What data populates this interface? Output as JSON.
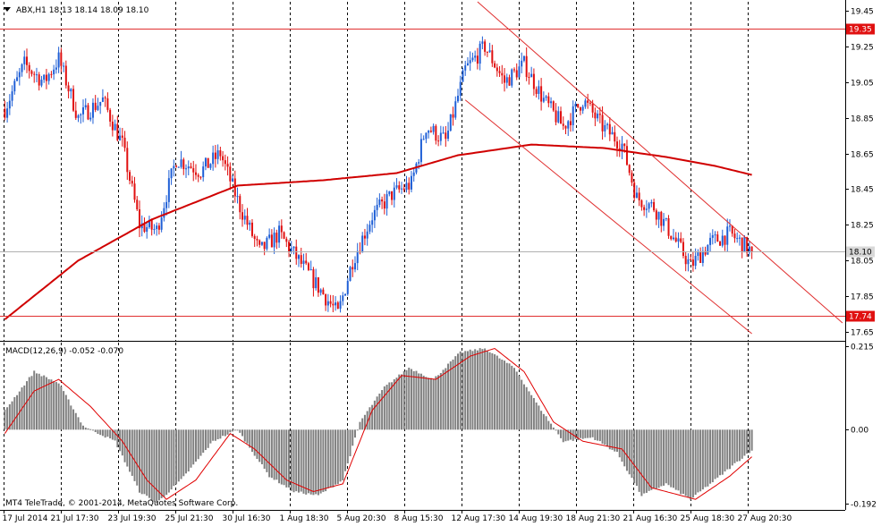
{
  "chart_data": [
    {
      "type": "candlestick",
      "header": "ABX,H1  18.13 18.14 18.09 18.10",
      "symbol": "ABX",
      "timeframe": "H1",
      "ohlc_last": {
        "open": 18.13,
        "high": 18.14,
        "low": 18.09,
        "close": 18.1
      },
      "ylim": [
        17.6,
        19.5
      ],
      "y_ticks": [
        "19.45",
        "19.25",
        "19.05",
        "18.85",
        "18.65",
        "18.45",
        "18.25",
        "18.05",
        "17.85",
        "17.65"
      ],
      "x_ticks": [
        "17 Jul 2014",
        "21 Jul 17:30",
        "23 Jul 19:30",
        "25 Jul 21:30",
        "30 Jul 16:30",
        "1 Aug 18:30",
        "5 Aug 20:30",
        "8 Aug 15:30",
        "12 Aug 17:30",
        "14 Aug 19:30",
        "18 Aug 21:30",
        "21 Aug 16:30",
        "25 Aug 18:30",
        "27 Aug 20:30"
      ],
      "current_price_label": "18.10",
      "horizontal_levels": [
        {
          "value": 19.35,
          "label": "19.35"
        },
        {
          "value": 17.74,
          "label": "17.74"
        }
      ],
      "ma_anchor_points": [
        {
          "bar": 0,
          "value": 17.72
        },
        {
          "bar": 30,
          "value": 18.05
        },
        {
          "bar": 60,
          "value": 18.28
        },
        {
          "bar": 95,
          "value": 18.47
        },
        {
          "bar": 130,
          "value": 18.5
        },
        {
          "bar": 160,
          "value": 18.54
        },
        {
          "bar": 185,
          "value": 18.64
        },
        {
          "bar": 215,
          "value": 18.7
        },
        {
          "bar": 245,
          "value": 18.68
        },
        {
          "bar": 270,
          "value": 18.63
        },
        {
          "bar": 290,
          "value": 18.58
        },
        {
          "bar": 305,
          "value": 18.53
        }
      ],
      "channel_upper": {
        "from": {
          "bar": 193,
          "value": 19.5
        },
        "to": {
          "bar": 342,
          "value": 17.7
        }
      },
      "channel_lower": {
        "from": {
          "bar": 188,
          "value": 18.95
        },
        "to": {
          "bar": 305,
          "value": 17.64
        }
      },
      "price_path": [
        {
          "bar": 0,
          "value": 18.9
        },
        {
          "bar": 8,
          "value": 19.15
        },
        {
          "bar": 16,
          "value": 19.05
        },
        {
          "bar": 22,
          "value": 19.18
        },
        {
          "bar": 30,
          "value": 18.85
        },
        {
          "bar": 40,
          "value": 18.95
        },
        {
          "bar": 48,
          "value": 18.7
        },
        {
          "bar": 55,
          "value": 18.25
        },
        {
          "bar": 62,
          "value": 18.22
        },
        {
          "bar": 70,
          "value": 18.62
        },
        {
          "bar": 80,
          "value": 18.55
        },
        {
          "bar": 88,
          "value": 18.65
        },
        {
          "bar": 96,
          "value": 18.35
        },
        {
          "bar": 104,
          "value": 18.1
        },
        {
          "bar": 112,
          "value": 18.2
        },
        {
          "bar": 120,
          "value": 18.05
        },
        {
          "bar": 128,
          "value": 17.9
        },
        {
          "bar": 136,
          "value": 17.75
        },
        {
          "bar": 142,
          "value": 18.05
        },
        {
          "bar": 150,
          "value": 18.3
        },
        {
          "bar": 158,
          "value": 18.42
        },
        {
          "bar": 166,
          "value": 18.48
        },
        {
          "bar": 172,
          "value": 18.8
        },
        {
          "bar": 180,
          "value": 18.72
        },
        {
          "bar": 188,
          "value": 19.12
        },
        {
          "bar": 196,
          "value": 19.25
        },
        {
          "bar": 204,
          "value": 19.05
        },
        {
          "bar": 212,
          "value": 19.15
        },
        {
          "bar": 220,
          "value": 18.95
        },
        {
          "bar": 228,
          "value": 18.8
        },
        {
          "bar": 236,
          "value": 18.95
        },
        {
          "bar": 244,
          "value": 18.8
        },
        {
          "bar": 252,
          "value": 18.7
        },
        {
          "bar": 258,
          "value": 18.4
        },
        {
          "bar": 265,
          "value": 18.35
        },
        {
          "bar": 272,
          "value": 18.2
        },
        {
          "bar": 280,
          "value": 18.02
        },
        {
          "bar": 288,
          "value": 18.15
        },
        {
          "bar": 296,
          "value": 18.2
        },
        {
          "bar": 305,
          "value": 18.1
        }
      ],
      "bar_count": 306
    },
    {
      "type": "macd",
      "header": "MACD(12,26,9) -0.052 -0.070",
      "params": "12,26,9",
      "macd_last": -0.052,
      "signal_last": -0.07,
      "ylim": [
        -0.205,
        0.225
      ],
      "y_ticks": [
        "0.215",
        "0.00",
        "-0.192"
      ],
      "histogram_anchor_points": [
        {
          "bar": 0,
          "value": 0.05
        },
        {
          "bar": 12,
          "value": 0.15
        },
        {
          "bar": 22,
          "value": 0.12
        },
        {
          "bar": 32,
          "value": 0.01
        },
        {
          "bar": 45,
          "value": -0.03
        },
        {
          "bar": 55,
          "value": -0.16
        },
        {
          "bar": 62,
          "value": -0.19
        },
        {
          "bar": 72,
          "value": -0.13
        },
        {
          "bar": 85,
          "value": -0.03
        },
        {
          "bar": 95,
          "value": 0.0
        },
        {
          "bar": 108,
          "value": -0.12
        },
        {
          "bar": 118,
          "value": -0.16
        },
        {
          "bar": 128,
          "value": -0.17
        },
        {
          "bar": 138,
          "value": -0.13
        },
        {
          "bar": 145,
          "value": 0.02
        },
        {
          "bar": 155,
          "value": 0.11
        },
        {
          "bar": 165,
          "value": 0.16
        },
        {
          "bar": 175,
          "value": 0.13
        },
        {
          "bar": 186,
          "value": 0.2
        },
        {
          "bar": 196,
          "value": 0.21
        },
        {
          "bar": 208,
          "value": 0.16
        },
        {
          "bar": 218,
          "value": 0.06
        },
        {
          "bar": 228,
          "value": -0.03
        },
        {
          "bar": 240,
          "value": -0.02
        },
        {
          "bar": 250,
          "value": -0.06
        },
        {
          "bar": 260,
          "value": -0.17
        },
        {
          "bar": 270,
          "value": -0.14
        },
        {
          "bar": 280,
          "value": -0.18
        },
        {
          "bar": 292,
          "value": -0.12
        },
        {
          "bar": 305,
          "value": -0.052
        }
      ],
      "signal_anchor_points": [
        {
          "bar": 0,
          "value": -0.01
        },
        {
          "bar": 12,
          "value": 0.1
        },
        {
          "bar": 22,
          "value": 0.13
        },
        {
          "bar": 35,
          "value": 0.06
        },
        {
          "bar": 48,
          "value": -0.03
        },
        {
          "bar": 58,
          "value": -0.13
        },
        {
          "bar": 66,
          "value": -0.18
        },
        {
          "bar": 78,
          "value": -0.13
        },
        {
          "bar": 92,
          "value": -0.01
        },
        {
          "bar": 102,
          "value": -0.05
        },
        {
          "bar": 115,
          "value": -0.13
        },
        {
          "bar": 126,
          "value": -0.16
        },
        {
          "bar": 138,
          "value": -0.14
        },
        {
          "bar": 150,
          "value": 0.05
        },
        {
          "bar": 162,
          "value": 0.14
        },
        {
          "bar": 176,
          "value": 0.13
        },
        {
          "bar": 190,
          "value": 0.19
        },
        {
          "bar": 200,
          "value": 0.21
        },
        {
          "bar": 212,
          "value": 0.15
        },
        {
          "bar": 224,
          "value": 0.02
        },
        {
          "bar": 236,
          "value": -0.03
        },
        {
          "bar": 252,
          "value": -0.05
        },
        {
          "bar": 264,
          "value": -0.15
        },
        {
          "bar": 282,
          "value": -0.18
        },
        {
          "bar": 296,
          "value": -0.12
        },
        {
          "bar": 305,
          "value": -0.07
        }
      ]
    }
  ],
  "copyright": "MT4 TeleTrade, © 2001-2014, MetaQuotes Software Corp.",
  "colors": {
    "bull": "#1f5fd6",
    "bear": "#e01010",
    "ma": "#d00000",
    "channel": "#e03030",
    "level": "#e03030",
    "histogram": "#808080",
    "signal": "#e00000",
    "grid": "#000000",
    "level_label_bg": "#e01010",
    "price_label_bg": "#d8d8d8"
  }
}
